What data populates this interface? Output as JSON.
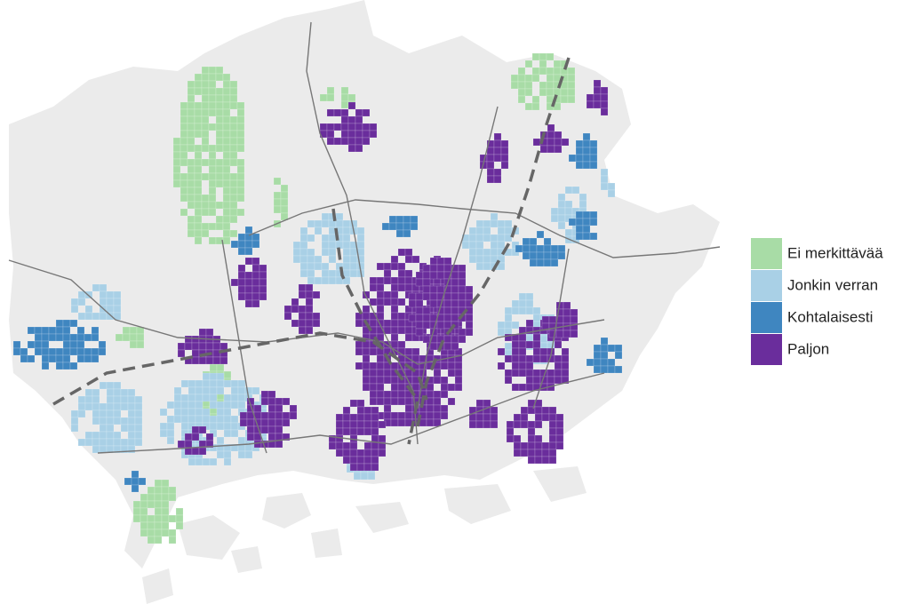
{
  "legend": {
    "items": [
      {
        "label": "Ei merkittävää",
        "color": "#a8dca6"
      },
      {
        "label": "Jonkin verran",
        "color": "#a9d0e6"
      },
      {
        "label": "Kohtalaisesti",
        "color": "#3f86c0"
      },
      {
        "label": "Paljon",
        "color": "#6a2d9c"
      }
    ]
  }
}
